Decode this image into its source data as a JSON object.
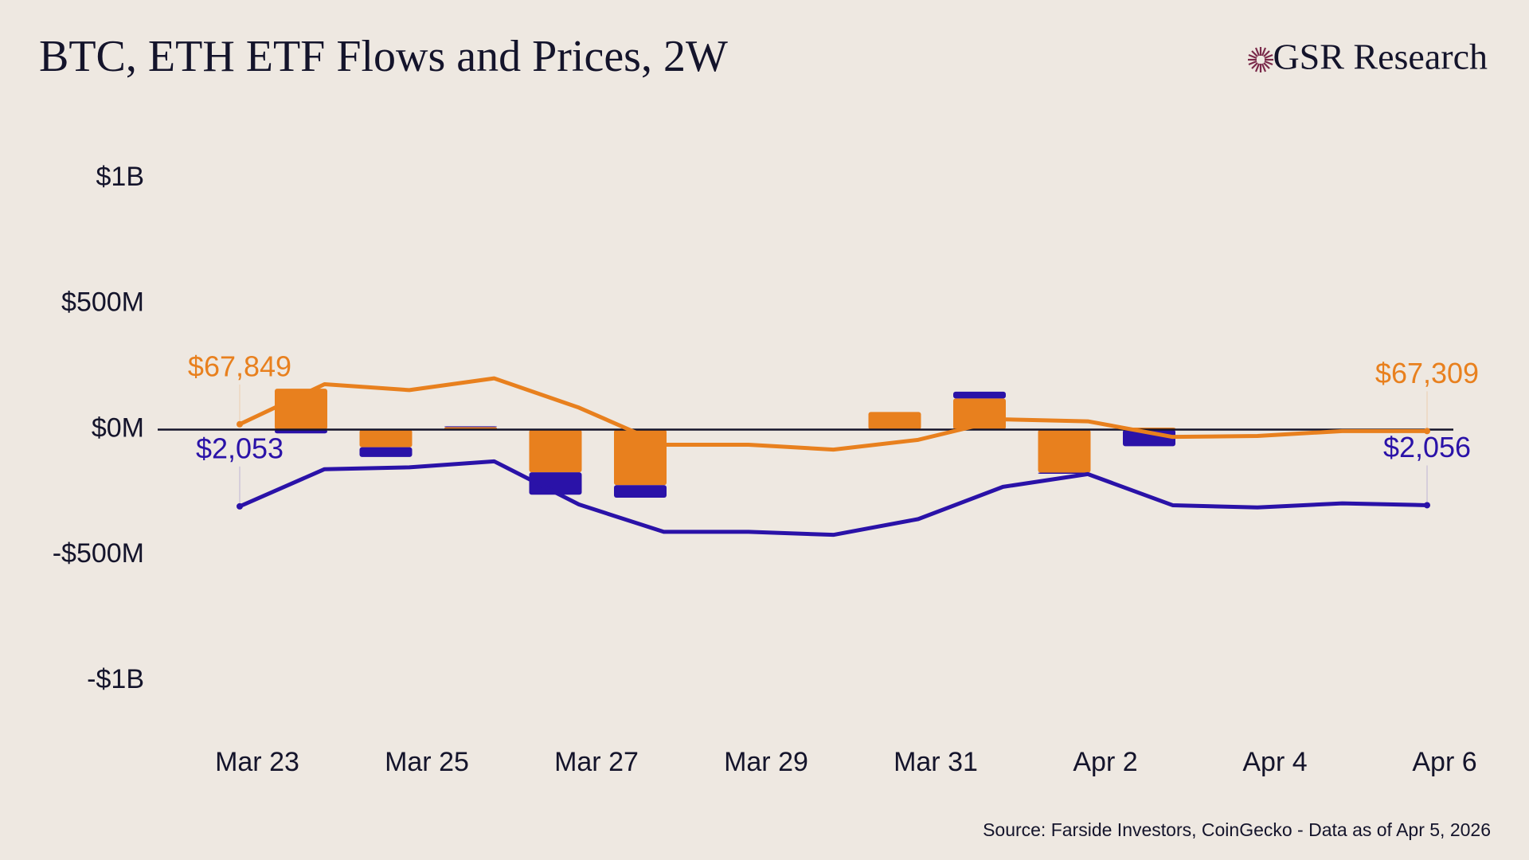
{
  "chart_data": {
    "type": "bar",
    "stacked": true,
    "title": "BTC, ETH ETF Flows and Prices, 2W",
    "brand": "GSR Research",
    "source": "Source: Farside Investors, CoinGecko - Data as of Apr 5, 2026",
    "x": [
      "Mar 23",
      null,
      "Mar 25",
      null,
      "Mar 27",
      null,
      "Mar 29",
      null,
      "Mar 31",
      null,
      "Apr 2",
      null,
      "Apr 4",
      null,
      "Apr 6"
    ],
    "ylim": [
      -1000,
      1000
    ],
    "yticks": [
      {
        "value": 1000,
        "label": "$1B"
      },
      {
        "value": 500,
        "label": "$500M"
      },
      {
        "value": 0,
        "label": "$0M"
      },
      {
        "value": -500,
        "label": "-$500M"
      },
      {
        "value": -1000,
        "label": "-$1B"
      }
    ],
    "series": [
      {
        "type": "bar",
        "color": "#E8801E",
        "values": [
          163,
          -70,
          10,
          -170,
          -221,
          0,
          0,
          70,
          124,
          -171,
          8,
          0,
          0,
          0,
          0
        ]
      },
      {
        "type": "bar",
        "color": "#2A12A8",
        "values": [
          -15,
          -39,
          3,
          -89,
          -50,
          0,
          0,
          0,
          27,
          -5,
          -66,
          0,
          0,
          0,
          0
        ]
      },
      {
        "type": "line",
        "color": "#E8801E",
        "ylim": [
          47600,
          87250
        ],
        "values": [
          67849,
          71006,
          70544,
          71468,
          69158,
          66232,
          66232,
          65847,
          66617,
          68234,
          68080,
          66848,
          66925,
          67309,
          67309
        ],
        "value_labels": [
          "$67,849",
          null,
          null,
          null,
          null,
          null,
          null,
          null,
          null,
          null,
          null,
          null,
          null,
          null,
          "$67,309"
        ]
      },
      {
        "type": "line",
        "color": "#2A12A8",
        "ylim": [
          1588,
          2927
        ],
        "values": [
          2053,
          2152,
          2157,
          2173,
          2058,
          1985,
          1985,
          1977,
          2019,
          2105,
          2139,
          2056,
          2050,
          2061,
          2056
        ],
        "value_labels": [
          "$2,053",
          null,
          null,
          null,
          null,
          null,
          null,
          null,
          null,
          null,
          null,
          null,
          null,
          null,
          "$2,056"
        ]
      }
    ]
  }
}
